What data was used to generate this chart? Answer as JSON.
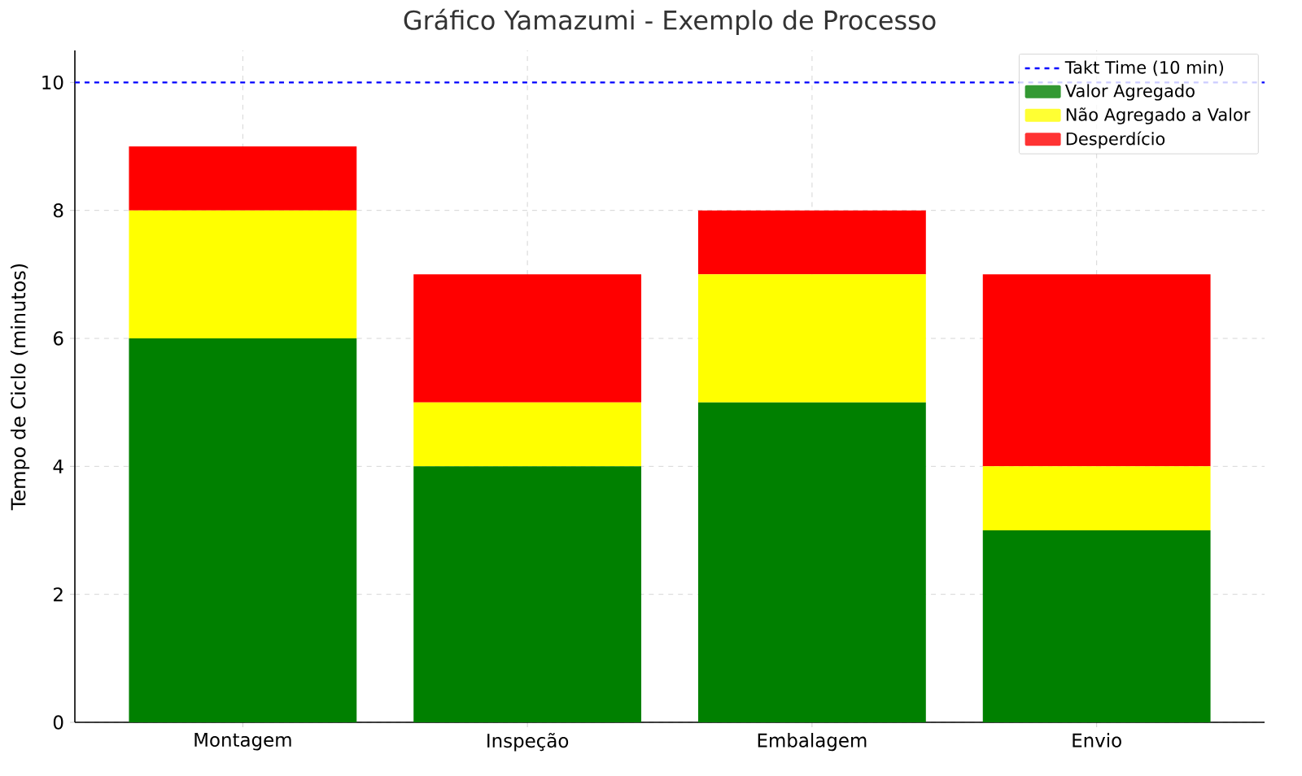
{
  "chart_data": {
    "type": "bar",
    "title": "Gráfico Yamazumi - Exemplo de Processo",
    "ylabel": "Tempo de Ciclo (minutos)",
    "categories": [
      "Montagem",
      "Inspeção",
      "Embalagem",
      "Envio"
    ],
    "series": [
      {
        "name": "Valor Agregado",
        "color": "#008000",
        "values": [
          6,
          4,
          5,
          3
        ]
      },
      {
        "name": "Não Agregado a Valor",
        "color": "#ffff00",
        "values": [
          2,
          1,
          2,
          1
        ]
      },
      {
        "name": "Desperdício",
        "color": "#ff0000",
        "values": [
          1,
          2,
          1,
          3
        ]
      }
    ],
    "stacked": true,
    "ylim": [
      0,
      10.5
    ],
    "yticks": [
      0,
      2,
      4,
      6,
      8,
      10
    ],
    "ref_lines": [
      {
        "axis": "y",
        "value": 10,
        "label": "Takt Time (10 min)",
        "color": "#0000ff",
        "line_style": "dashed"
      }
    ],
    "grid": true,
    "legend": "top right"
  }
}
